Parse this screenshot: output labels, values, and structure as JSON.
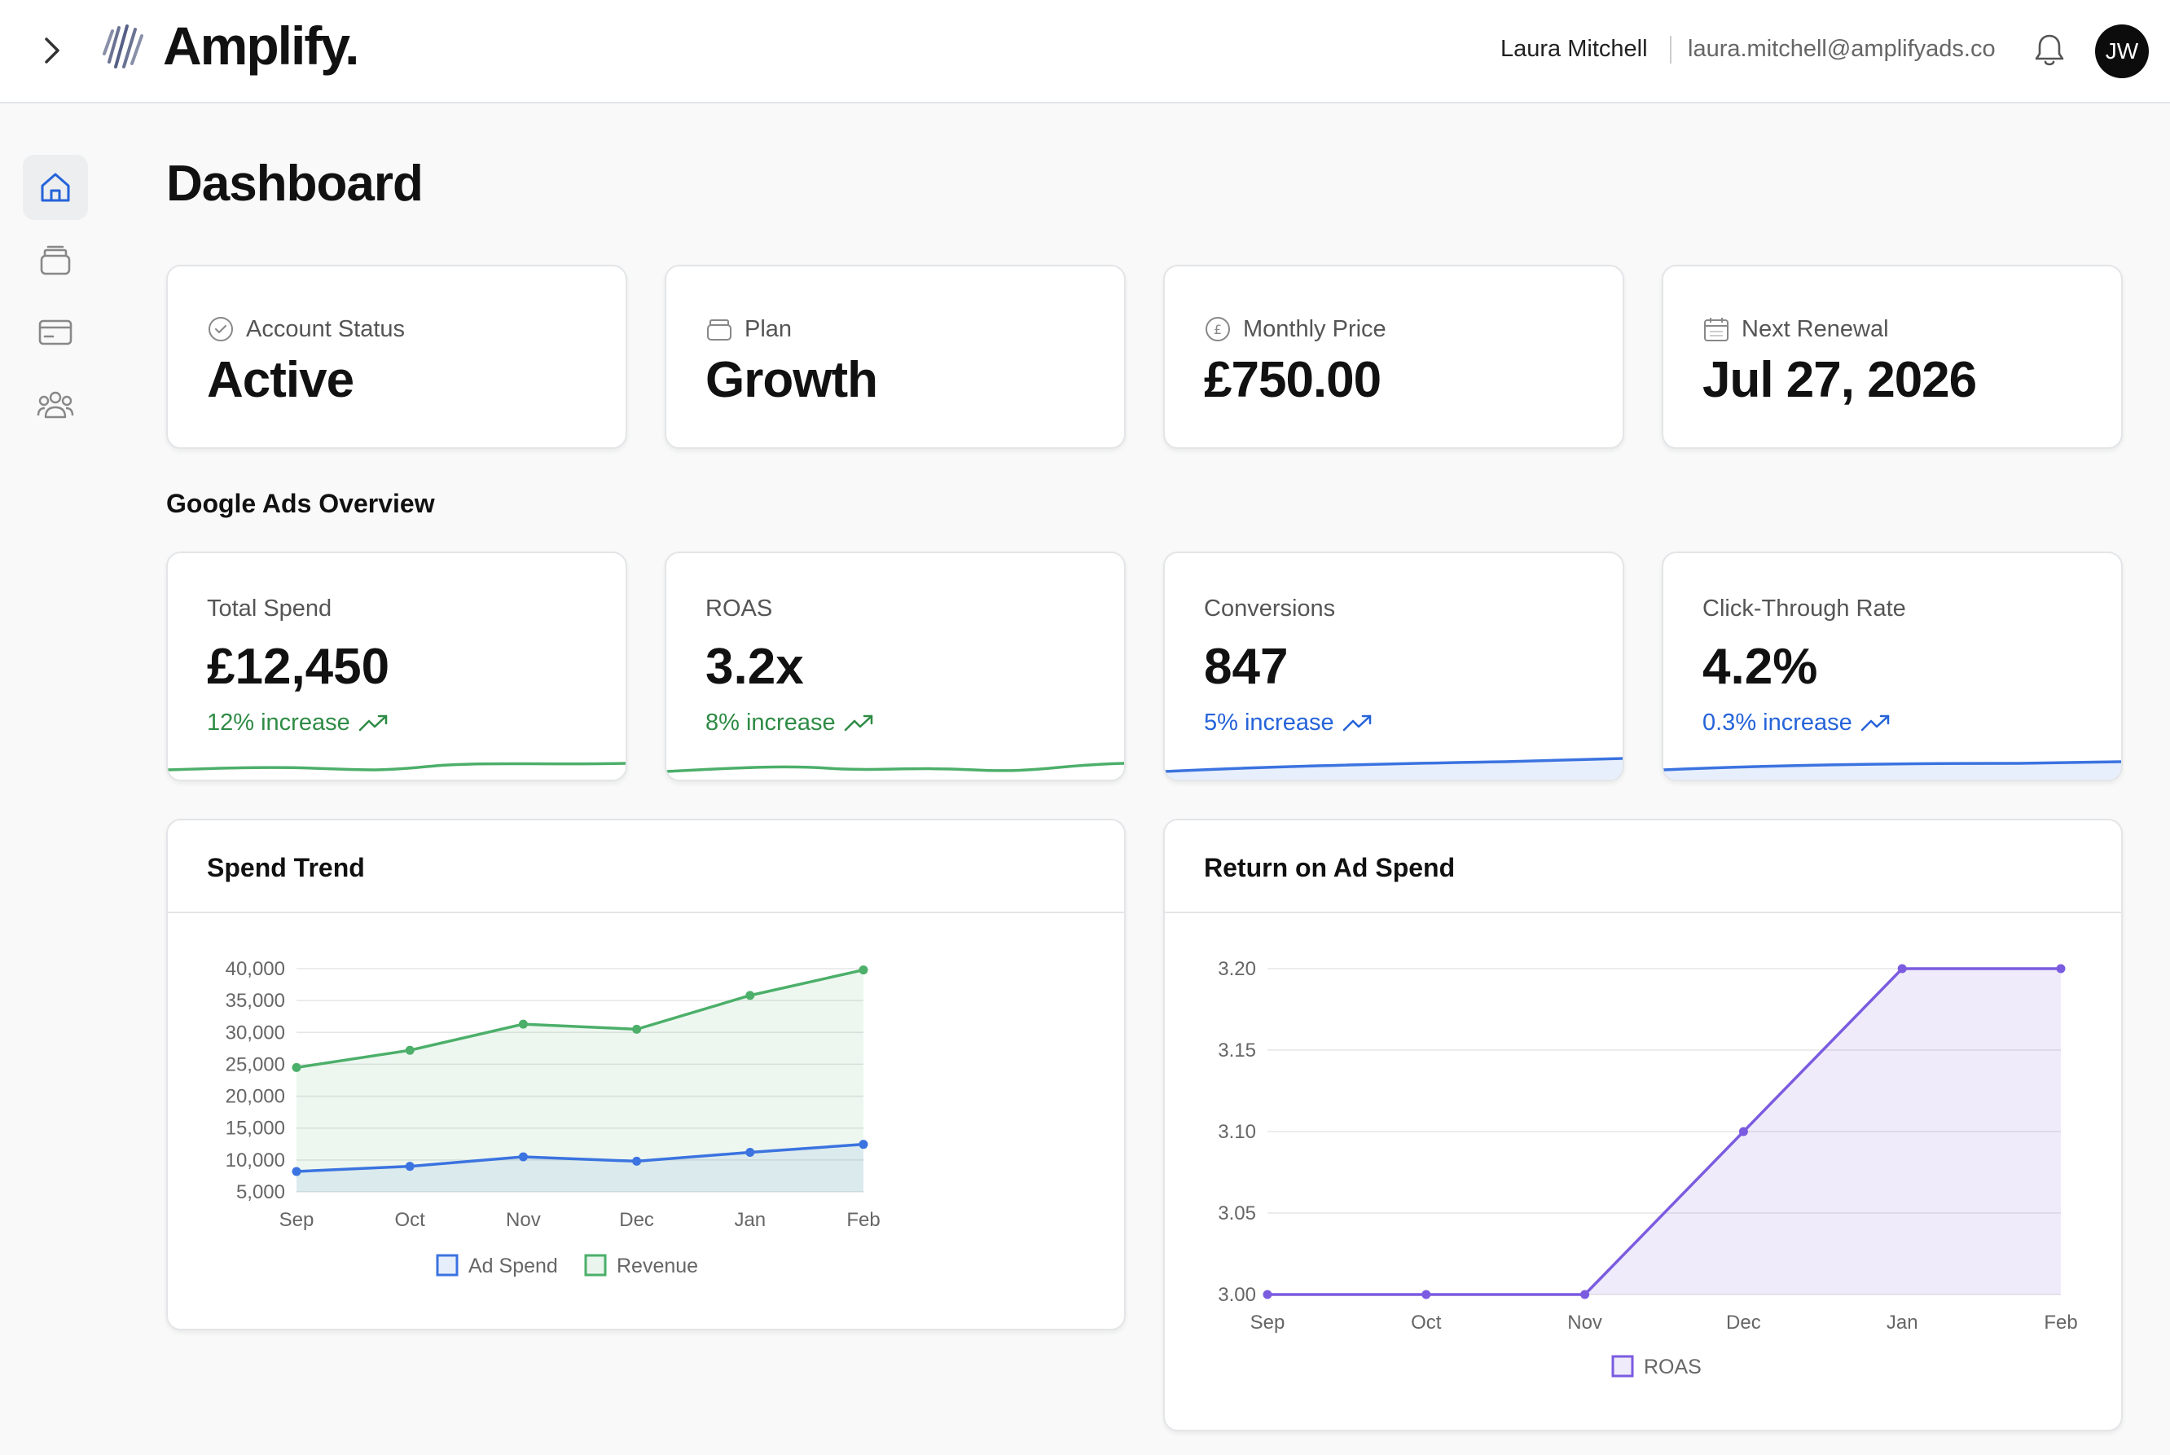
{
  "header": {
    "brand": "Amplify.",
    "user_name": "Laura Mitchell",
    "user_email": "laura.mitchell@amplifyads.co",
    "avatar_initials": "JW"
  },
  "sidebar": {
    "items": [
      {
        "name": "home",
        "icon": "home-icon",
        "active": true
      },
      {
        "name": "plans",
        "icon": "stack-icon",
        "active": false
      },
      {
        "name": "billing",
        "icon": "credit-card-icon",
        "active": false
      },
      {
        "name": "team",
        "icon": "users-icon",
        "active": false
      }
    ]
  },
  "page": {
    "title": "Dashboard"
  },
  "account_cards": [
    {
      "label": "Account Status",
      "value": "Active",
      "icon": "check-circle-icon"
    },
    {
      "label": "Plan",
      "value": "Growth",
      "icon": "package-icon"
    },
    {
      "label": "Monthly Price",
      "value": "£750.00",
      "icon": "pound-circle-icon"
    },
    {
      "label": "Next Renewal",
      "value": "Jul 27, 2026",
      "icon": "calendar-icon"
    }
  ],
  "overview": {
    "title": "Google Ads Overview",
    "metrics": [
      {
        "label": "Total Spend",
        "value": "£12,450",
        "change": "12% increase",
        "color": "#2e8b45"
      },
      {
        "label": "ROAS",
        "value": "3.2x",
        "change": "8% increase",
        "color": "#2e8b45"
      },
      {
        "label": "Conversions",
        "value": "847",
        "change": "5% increase",
        "color": "#2563d9"
      },
      {
        "label": "Click-Through Rate",
        "value": "4.2%",
        "change": "0.3% increase",
        "color": "#2563d9"
      }
    ]
  },
  "spend_trend": {
    "title": "Spend Trend",
    "legend": [
      "Ad Spend",
      "Revenue"
    ]
  },
  "roas_chart": {
    "title": "Return on Ad Spend",
    "legend": [
      "ROAS"
    ]
  },
  "chart_data": [
    {
      "type": "line",
      "title": "Spend Trend",
      "categories": [
        "Sep",
        "Oct",
        "Nov",
        "Dec",
        "Jan",
        "Feb"
      ],
      "ylim": [
        5000,
        40000
      ],
      "yticks": [
        "40,000",
        "35,000",
        "30,000",
        "25,000",
        "20,000",
        "15,000",
        "10,000",
        "5,000"
      ],
      "series": [
        {
          "name": "Ad Spend",
          "values": [
            8200,
            9000,
            10500,
            9800,
            11200,
            12450
          ],
          "color": "#3b73e0"
        },
        {
          "name": "Revenue",
          "values": [
            24500,
            27200,
            31300,
            30500,
            35800,
            39800
          ],
          "color": "#4caf6a"
        }
      ],
      "legend": "bottom",
      "grid": true
    },
    {
      "type": "area",
      "title": "Return on Ad Spend",
      "categories": [
        "Sep",
        "Oct",
        "Nov",
        "Dec",
        "Jan",
        "Feb"
      ],
      "ylim": [
        3.0,
        3.2
      ],
      "yticks": [
        "3.20",
        "3.15",
        "3.10",
        "3.05",
        "3.00"
      ],
      "series": [
        {
          "name": "ROAS",
          "values": [
            3.0,
            3.0,
            3.0,
            3.1,
            3.2,
            3.2
          ],
          "color": "#7b5be0"
        }
      ],
      "legend": "bottom",
      "grid": true
    }
  ]
}
